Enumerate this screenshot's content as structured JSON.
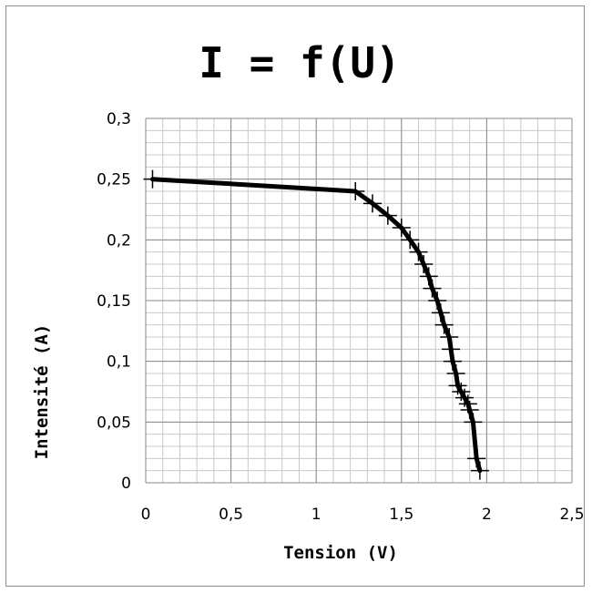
{
  "chart_data": {
    "type": "line",
    "title": "I = f(U)",
    "xlabel": "Tension (V)",
    "ylabel": "Intensité (A)",
    "xlim": [
      0,
      2.5
    ],
    "ylim": [
      0,
      0.3
    ],
    "x_ticks": [
      "0",
      "0,5",
      "1",
      "1,5",
      "2",
      "2,5"
    ],
    "y_ticks": [
      "0",
      "0,05",
      "0,1",
      "0,15",
      "0,2",
      "0,25",
      "0,3"
    ],
    "grid": true,
    "legend": "none",
    "series": [
      {
        "color": "#000000",
        "points": [
          {
            "x": 0.04,
            "y": 0.25
          },
          {
            "x": 1.23,
            "y": 0.24
          },
          {
            "x": 1.33,
            "y": 0.23
          },
          {
            "x": 1.42,
            "y": 0.22
          },
          {
            "x": 1.5,
            "y": 0.21
          },
          {
            "x": 1.55,
            "y": 0.2
          },
          {
            "x": 1.6,
            "y": 0.19
          },
          {
            "x": 1.63,
            "y": 0.18
          },
          {
            "x": 1.66,
            "y": 0.17
          },
          {
            "x": 1.68,
            "y": 0.16
          },
          {
            "x": 1.71,
            "y": 0.15
          },
          {
            "x": 1.73,
            "y": 0.14
          },
          {
            "x": 1.75,
            "y": 0.13
          },
          {
            "x": 1.78,
            "y": 0.12
          },
          {
            "x": 1.79,
            "y": 0.11
          },
          {
            "x": 1.8,
            "y": 0.1
          },
          {
            "x": 1.82,
            "y": 0.09
          },
          {
            "x": 1.83,
            "y": 0.08
          },
          {
            "x": 1.85,
            "y": 0.075
          },
          {
            "x": 1.87,
            "y": 0.07
          },
          {
            "x": 1.89,
            "y": 0.065
          },
          {
            "x": 1.9,
            "y": 0.06
          },
          {
            "x": 1.92,
            "y": 0.05
          },
          {
            "x": 1.94,
            "y": 0.02
          },
          {
            "x": 1.96,
            "y": 0.01
          }
        ]
      }
    ]
  }
}
